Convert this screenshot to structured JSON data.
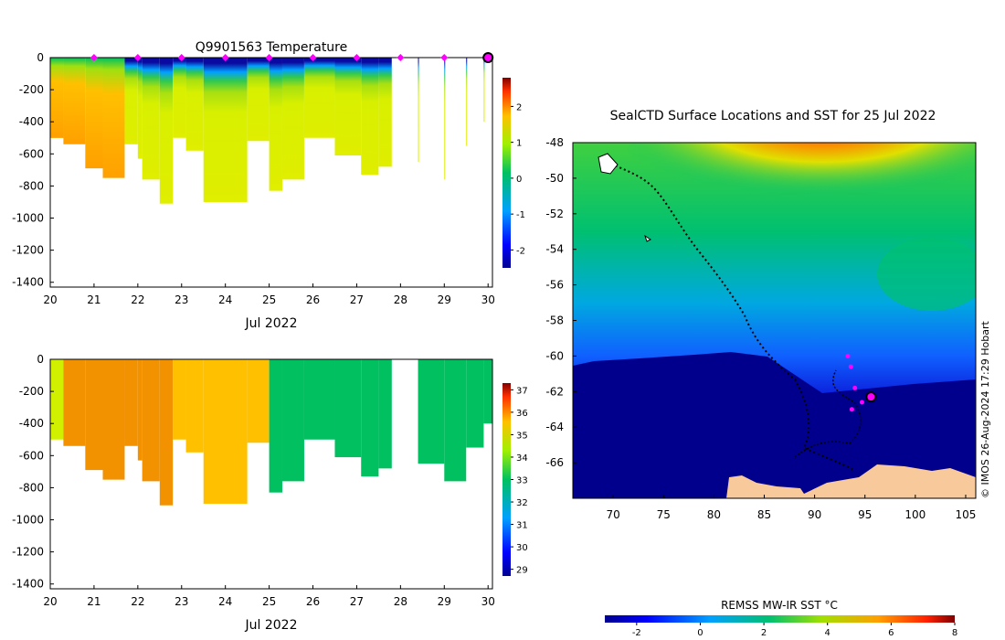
{
  "colors": {
    "ocean_deep": "#00008c",
    "land": "#f7c99b",
    "marker": "#ff00ff",
    "track": "#000000"
  },
  "chart_data": [
    {
      "type": "heatmap",
      "title": "Q9901563  Temperature",
      "xlabel": "Jul 2022",
      "x_ticks": [
        "20",
        "21",
        "22",
        "23",
        "24",
        "25",
        "26",
        "27",
        "28",
        "29",
        "30"
      ],
      "y_ticks": [
        "0",
        "-200",
        "-400",
        "-600",
        "-800",
        "-1000",
        "-1200",
        "-1400"
      ],
      "xlim": [
        20,
        30.1
      ],
      "ylim": [
        -1430,
        0
      ],
      "colorbar": {
        "ticks": [
          "-2",
          "-1",
          "0",
          "1",
          "2"
        ],
        "range": [
          -2.5,
          2.8
        ]
      },
      "profiles": [
        {
          "t": 20.0,
          "depth": 500,
          "surface": "-1.2 to 0.5",
          "deep": 1.4
        },
        {
          "t": 20.3,
          "depth": 540,
          "surface": "-0.5",
          "deep": 1.4
        },
        {
          "t": 20.8,
          "depth": 690,
          "surface": "-1",
          "deep": 1.4
        },
        {
          "t": 21.2,
          "depth": 750,
          "surface": "-1.8",
          "deep": 1.2
        },
        {
          "t": 21.7,
          "depth": 540,
          "surface": "-1.8",
          "deep": 1.0
        },
        {
          "t": 22.0,
          "depth": 630,
          "surface": "-1.8",
          "deep": 1.0
        },
        {
          "t": 22.1,
          "depth": 760,
          "surface": "-1.8",
          "deep": 0.9
        },
        {
          "t": 22.5,
          "depth": 910,
          "surface": "-1.8",
          "deep": 0.9
        },
        {
          "t": 22.8,
          "depth": 500,
          "surface": "-1.8",
          "deep": 0.9
        },
        {
          "t": 23.1,
          "depth": 580,
          "surface": "-1.8",
          "deep": 0.9
        },
        {
          "t": 23.5,
          "depth": 900,
          "surface": "-1.8",
          "deep": 0.9
        },
        {
          "t": 24.5,
          "depth": 520,
          "surface": "-1.8",
          "deep": 0.9
        },
        {
          "t": 25.0,
          "depth": 830,
          "surface": "-1.8",
          "deep": 0.8
        },
        {
          "t": 25.3,
          "depth": 760,
          "surface": "-1.8",
          "deep": 0.9
        },
        {
          "t": 25.8,
          "depth": 500,
          "surface": "-1.8",
          "deep": 0.9
        },
        {
          "t": 26.5,
          "depth": 610,
          "surface": "-1.8",
          "deep": 0.9
        },
        {
          "t": 27.1,
          "depth": 730,
          "surface": "-1.8",
          "deep": 0.9
        },
        {
          "t": 27.5,
          "depth": 680,
          "surface": "-1.8",
          "deep": 0.9
        },
        {
          "t": 28.4,
          "depth": 650,
          "surface": "-1.8",
          "deep": 0.9
        },
        {
          "t": 29.0,
          "depth": 760,
          "surface": "-1.8",
          "deep": 0.9
        },
        {
          "t": 29.5,
          "depth": 550,
          "surface": "-1.8",
          "deep": 0.9
        },
        {
          "t": 29.9,
          "depth": 400,
          "surface": "-1.8",
          "deep": 0.9
        }
      ],
      "surface_markers_days": [
        21.0,
        22.0,
        23.0,
        24.0,
        25.0,
        26.0,
        27.0,
        28.0,
        29.0
      ],
      "latest_marker_day": 30.0
    },
    {
      "type": "heatmap",
      "title": "",
      "xlabel": "Jul 2022",
      "x_ticks": [
        "20",
        "21",
        "22",
        "23",
        "24",
        "25",
        "26",
        "27",
        "28",
        "29",
        "30"
      ],
      "y_ticks": [
        "0",
        "-200",
        "-400",
        "-600",
        "-800",
        "-1000",
        "-1200",
        "-1400"
      ],
      "xlim": [
        20,
        30.1
      ],
      "ylim": [
        -1430,
        0
      ],
      "colorbar": {
        "ticks": [
          "29",
          "30",
          "31",
          "32",
          "33",
          "34",
          "35",
          "36",
          "37"
        ],
        "range": [
          28.7,
          37.3
        ]
      },
      "blocks": [
        {
          "start": 20.0,
          "end": 20.3,
          "value": 34.2
        },
        {
          "start": 20.3,
          "end": 22.8,
          "value": 35.3
        },
        {
          "start": 22.8,
          "end": 25.0,
          "value": 34.6
        },
        {
          "start": 25.0,
          "end": 27.8,
          "value": 32.6
        },
        {
          "start": 28.4,
          "end": 30.1,
          "value": 32.6
        }
      ]
    },
    {
      "type": "heatmap",
      "title": "SealCTD Surface Locations and SST for 25 Jul 2022",
      "xlabel": "",
      "x_ticks": [
        "70",
        "75",
        "80",
        "85",
        "90",
        "95",
        "100",
        "105"
      ],
      "y_ticks": [
        "-48",
        "-50",
        "-52",
        "-54",
        "-56",
        "-58",
        "-60",
        "-62",
        "-64",
        "-66"
      ],
      "xlim": [
        66,
        106
      ],
      "ylim": [
        -68,
        -48
      ],
      "colorbar": {
        "label": "REMSS MW-IR SST °C",
        "ticks": [
          "-2",
          "0",
          "2",
          "4",
          "6",
          "8"
        ],
        "range": [
          -3,
          8
        ]
      },
      "recent_surfacings": [
        {
          "lon": 93.3,
          "lat": -60.0
        },
        {
          "lon": 93.6,
          "lat": -60.6
        },
        {
          "lon": 94.0,
          "lat": -61.8
        },
        {
          "lon": 93.7,
          "lat": -63.0
        },
        {
          "lon": 94.7,
          "lat": -62.6
        }
      ],
      "current_position": {
        "lon": 95.6,
        "lat": -62.3
      }
    }
  ],
  "credit": "© IMOS 26-Aug-2024 17:29 Hobart"
}
